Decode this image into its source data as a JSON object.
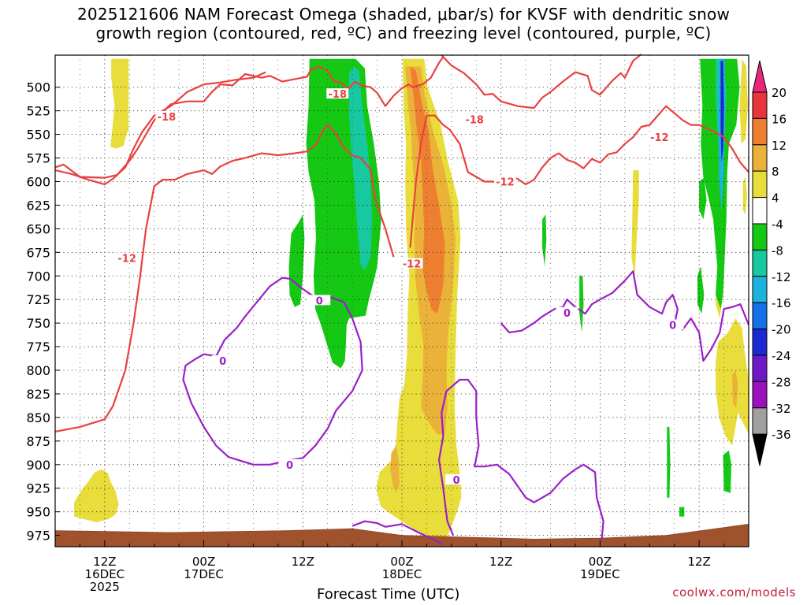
{
  "title": {
    "line1": "2025121606 NAM Forecast Omega (shaded, μbar/s) for KVSF with dendritic snow",
    "line2": "growth region (contoured, red, ºC) and freezing level (contoured, purple, ºC)"
  },
  "chart_data": {
    "type": "time-height cross-section",
    "xlabel": "Forecast Time (UTC)",
    "ylabel": "",
    "y_axis": {
      "unit": "mb",
      "ylim": [
        987,
        466
      ],
      "ticks": [
        500,
        525,
        550,
        575,
        600,
        625,
        650,
        675,
        700,
        725,
        750,
        775,
        800,
        825,
        850,
        875,
        900,
        925,
        950,
        975
      ]
    },
    "x_axis": {
      "xlim_hours": [
        6,
        90
      ],
      "ticks": [
        {
          "hour": 12,
          "label1": "12Z",
          "label2": "16DEC",
          "label3": "2025"
        },
        {
          "hour": 24,
          "label1": "00Z",
          "label2": "17DEC",
          "label3": ""
        },
        {
          "hour": 36,
          "label1": "12Z",
          "label2": "",
          "label3": ""
        },
        {
          "hour": 48,
          "label1": "00Z",
          "label2": "18DEC",
          "label3": ""
        },
        {
          "hour": 60,
          "label1": "12Z",
          "label2": "",
          "label3": ""
        },
        {
          "hour": 72,
          "label1": "00Z",
          "label2": "19DEC",
          "label3": ""
        },
        {
          "hour": 84,
          "label1": "12Z",
          "label2": "",
          "label3": ""
        }
      ]
    },
    "colorbar": {
      "unit": "μbar/s",
      "labels": [
        "20",
        "16",
        "12",
        "8",
        "4",
        "-4",
        "-8",
        "-12",
        "-16",
        "-20",
        "-24",
        "-28",
        "-32",
        "-36"
      ],
      "bins": [
        {
          "color": "#e8287a"
        },
        {
          "color": "#e8343c"
        },
        {
          "color": "#ee7f30"
        },
        {
          "color": "#ebb23a"
        },
        {
          "color": "#e8dd3a"
        },
        {
          "color": "#ffffff"
        },
        {
          "color": "#14c814"
        },
        {
          "color": "#18c8a0"
        },
        {
          "color": "#1cb4dc"
        },
        {
          "color": "#1470e6"
        },
        {
          "color": "#1c28d2"
        },
        {
          "color": "#6e18c8"
        },
        {
          "color": "#9c10be"
        },
        {
          "color": "#a0a0a0"
        },
        {
          "color": "#000000"
        }
      ]
    },
    "omega_shaded": [
      {
        "value_range": [
          4,
          8
        ],
        "color": "#e8dd3a",
        "region": "hours 13-15.5, 470-565 mb"
      },
      {
        "value_range": [
          4,
          8
        ],
        "color": "#e8dd3a",
        "region": "hours 8-14, 905-960 mb"
      },
      {
        "value_range": [
          4,
          16
        ],
        "color": "#ee7f30",
        "region": "hours 47-55, 470-980 mb (strongest ~48-54h, 560-760 mb)"
      },
      {
        "value_range": [
          -12,
          -4
        ],
        "color": "#14c814",
        "region": "hours 36-44, 470-800 mb"
      },
      {
        "value_range": [
          -16,
          -8
        ],
        "color": "#18c8a0",
        "region": "hours 42-45, 490-690 mb"
      },
      {
        "value_range": [
          -24,
          -4
        ],
        "color": "#1c28d2",
        "region": "hours 84-88, 470-800 mb"
      },
      {
        "value_range": [
          4,
          12
        ],
        "color": "#e8dd3a",
        "region": "hours 86-90, 770-870 mb"
      }
    ],
    "dgz_contours": {
      "color": "#ea4040",
      "levels": [
        {
          "value": -12,
          "label": "-12"
        },
        {
          "value": -18,
          "label": "-18"
        }
      ]
    },
    "freezing_contour": {
      "color": "#9b1fc6",
      "value": 0,
      "label": "0"
    },
    "terrain": {
      "color": "#a0522d",
      "pressure_mb": 975
    }
  },
  "credit": "coolwx.com/models"
}
